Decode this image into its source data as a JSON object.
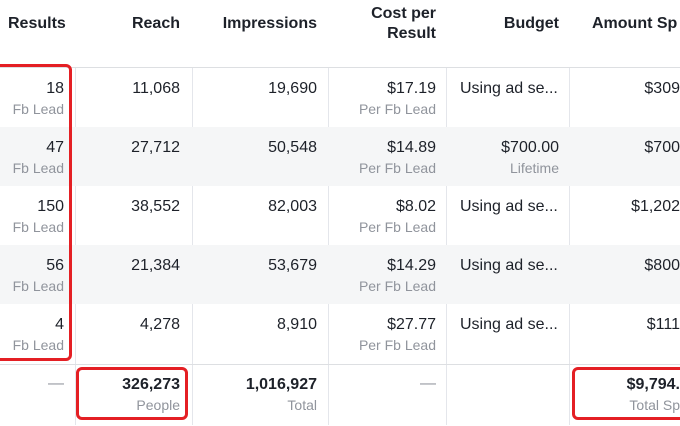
{
  "headers": {
    "results": "Results",
    "reach": "Reach",
    "impressions": "Impressions",
    "cost_per_result_line1": "Cost per",
    "cost_per_result_line2": "Result",
    "budget": "Budget",
    "amount_spent": "Amount Sp"
  },
  "rows": [
    {
      "results": "18",
      "results_unit": "Fb Lead",
      "reach": "11,068",
      "impressions": "19,690",
      "cpr": "$17.19",
      "cpr_unit": "Per Fb Lead",
      "budget": "Using ad se...",
      "budget_sub": "",
      "amount": "$309"
    },
    {
      "results": "47",
      "results_unit": "Fb Lead",
      "reach": "27,712",
      "impressions": "50,548",
      "cpr": "$14.89",
      "cpr_unit": "Per Fb Lead",
      "budget": "$700.00",
      "budget_sub": "Lifetime",
      "amount": "$700"
    },
    {
      "results": "150",
      "results_unit": "Fb Lead",
      "reach": "38,552",
      "impressions": "82,003",
      "cpr": "$8.02",
      "cpr_unit": "Per Fb Lead",
      "budget": "Using ad se...",
      "budget_sub": "",
      "amount": "$1,202"
    },
    {
      "results": "56",
      "results_unit": "Fb Lead",
      "reach": "21,384",
      "impressions": "53,679",
      "cpr": "$14.29",
      "cpr_unit": "Per Fb Lead",
      "budget": "Using ad se...",
      "budget_sub": "",
      "amount": "$800"
    },
    {
      "results": "4",
      "results_unit": "Fb Lead",
      "reach": "4,278",
      "impressions": "8,910",
      "cpr": "$27.77",
      "cpr_unit": "Per Fb Lead",
      "budget": "Using ad se...",
      "budget_sub": "",
      "amount": "$111"
    }
  ],
  "totals": {
    "results": "—",
    "reach": "326,273",
    "reach_unit": "People",
    "impressions": "1,016,927",
    "impressions_unit": "Total",
    "cpr": "—",
    "amount": "$9,794.",
    "amount_unit": "Total Sp"
  },
  "colors": {
    "highlight": "#e41f24",
    "alt_row": "#f5f6f7",
    "muted_text": "#90949c"
  }
}
